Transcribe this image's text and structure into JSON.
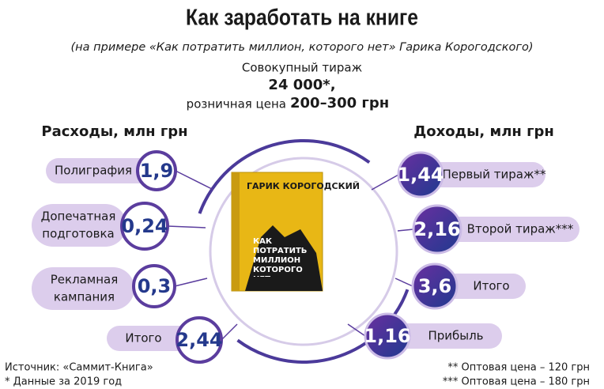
{
  "header": {
    "title": "Как заработать на книге",
    "subtitle": "(на примере «Как потратить миллион, которого нет» Гарика Корогодского)",
    "circulation_label": "Совокупный тираж",
    "circulation_value": "24 000*,",
    "price_label": "розничная цена",
    "price_value": "200–300 грн"
  },
  "book": {
    "author": "ГАРИК КОРОГОДСКИЙ",
    "title": "КАК ПОТРАТИТЬ МИЛЛИОН КОТОРОГО НЕТ"
  },
  "expenses": {
    "title": "Расходы, млн грн",
    "items": [
      {
        "label": [
          "Полиграфия"
        ],
        "value": "1,9"
      },
      {
        "label": [
          "Допечатная",
          "подготовка"
        ],
        "value": "0,24"
      },
      {
        "label": [
          "Рекламная",
          "кампания"
        ],
        "value": "0,3"
      },
      {
        "label": [
          "Итого"
        ],
        "value": "2,44"
      }
    ]
  },
  "income": {
    "title": "Доходы, млн грн",
    "items": [
      {
        "label": "Первый тираж**",
        "value": "1,44"
      },
      {
        "label": "Второй тираж***",
        "value": "2,16"
      },
      {
        "label": "Итого",
        "value": "3,6"
      },
      {
        "label": "Прибыль",
        "value": "1,16"
      }
    ]
  },
  "footer": {
    "source": "Источник: «Саммит-Книга»",
    "note1": "* Данные за 2019 год",
    "note2": "** Оптовая цена – 120 грн",
    "note3": "*** Оптовая цена – 180 грн"
  }
}
